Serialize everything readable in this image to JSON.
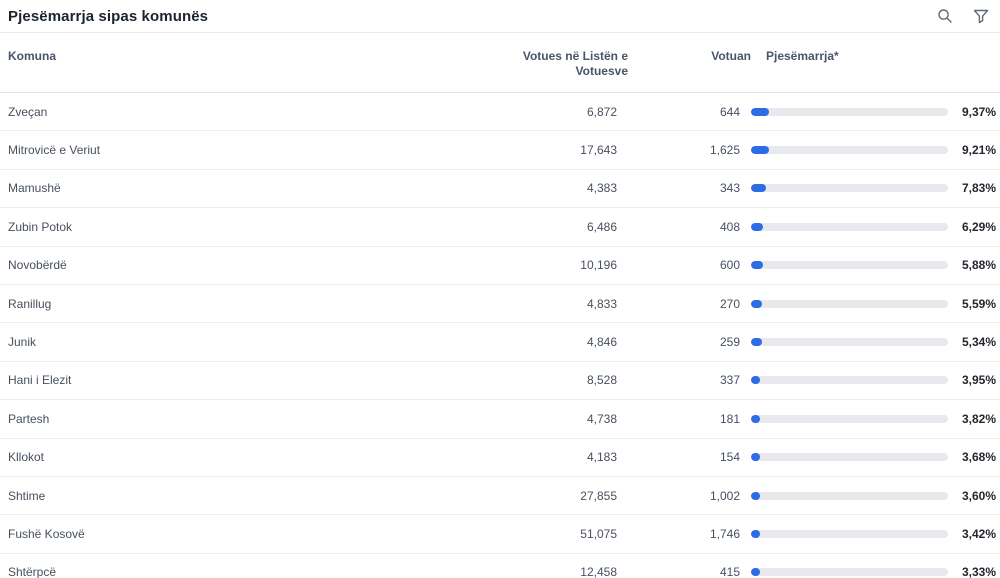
{
  "widget": {
    "title": "Pjesëmarrja sipas komunës"
  },
  "toolbar": {
    "icons": [
      "search-icon",
      "filter-icon"
    ],
    "icon_color": "#5f6a79"
  },
  "table": {
    "columns": {
      "komuna": "Komuna",
      "votues": "Votues në Listën e Votuesve",
      "votuan": "Votuan",
      "pjesemarrja": "Pjesëmarrja*"
    },
    "rows": [
      {
        "komuna": "Zveçan",
        "votues": "6,872",
        "votuan": "644",
        "pct_label": "9,37%",
        "pct": 9.37
      },
      {
        "komuna": "Mitrovicë e Veriut",
        "votues": "17,643",
        "votuan": "1,625",
        "pct_label": "9,21%",
        "pct": 9.21
      },
      {
        "komuna": "Mamushë",
        "votues": "4,383",
        "votuan": "343",
        "pct_label": "7,83%",
        "pct": 7.83
      },
      {
        "komuna": "Zubin Potok",
        "votues": "6,486",
        "votuan": "408",
        "pct_label": "6,29%",
        "pct": 6.29
      },
      {
        "komuna": "Novobërdë",
        "votues": "10,196",
        "votuan": "600",
        "pct_label": "5,88%",
        "pct": 5.88
      },
      {
        "komuna": "Ranillug",
        "votues": "4,833",
        "votuan": "270",
        "pct_label": "5,59%",
        "pct": 5.59
      },
      {
        "komuna": "Junik",
        "votues": "4,846",
        "votuan": "259",
        "pct_label": "5,34%",
        "pct": 5.34
      },
      {
        "komuna": "Hani i Elezit",
        "votues": "8,528",
        "votuan": "337",
        "pct_label": "3,95%",
        "pct": 3.95
      },
      {
        "komuna": "Partesh",
        "votues": "4,738",
        "votuan": "181",
        "pct_label": "3,82%",
        "pct": 3.82
      },
      {
        "komuna": "Kllokot",
        "votues": "4,183",
        "votuan": "154",
        "pct_label": "3,68%",
        "pct": 3.68
      },
      {
        "komuna": "Shtime",
        "votues": "27,855",
        "votuan": "1,002",
        "pct_label": "3,60%",
        "pct": 3.6
      },
      {
        "komuna": "Fushë Kosovë",
        "votues": "51,075",
        "votuan": "1,746",
        "pct_label": "3,42%",
        "pct": 3.42
      },
      {
        "komuna": "Shtërpcë",
        "votues": "12,458",
        "votuan": "415",
        "pct_label": "3,33%",
        "pct": 3.33
      }
    ]
  },
  "chart_data": {
    "type": "table",
    "title": "Pjesëmarrja sipas komunës",
    "columns": [
      "Komuna",
      "Votues në Listën e Votuesve",
      "Votuan",
      "Pjesëmarrja*"
    ],
    "rows": [
      [
        "Zveçan",
        6872,
        644,
        9.37
      ],
      [
        "Mitrovicë e Veriut",
        17643,
        1625,
        9.21
      ],
      [
        "Mamushë",
        4383,
        343,
        7.83
      ],
      [
        "Zubin Potok",
        6486,
        408,
        6.29
      ],
      [
        "Novobërdë",
        10196,
        600,
        5.88
      ],
      [
        "Ranillug",
        4833,
        270,
        5.59
      ],
      [
        "Junik",
        4846,
        259,
        5.34
      ],
      [
        "Hani i Elezit",
        8528,
        337,
        3.95
      ],
      [
        "Partesh",
        4738,
        181,
        3.82
      ],
      [
        "Kllokot",
        4183,
        154,
        3.68
      ],
      [
        "Shtime",
        27855,
        1002,
        3.6
      ],
      [
        "Fushë Kosovë",
        51075,
        1746,
        3.42
      ],
      [
        "Shtërpcë",
        12458,
        415,
        3.33
      ]
    ],
    "embedded_bars": {
      "column": "Pjesëmarrja*",
      "unit": "%",
      "scale": [
        0,
        100
      ],
      "fill_color": "#2d6ce4",
      "track_color": "#e8e9ec"
    }
  },
  "colors": {
    "title_text": "#1c2430",
    "header_text": "#4a5568",
    "cell_text": "#47505e",
    "pct_text": "#23272e",
    "bar_fill": "#2d6ce4",
    "bar_track": "#e8e9ec",
    "divider": "#eceef1"
  }
}
